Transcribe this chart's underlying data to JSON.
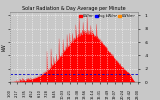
{
  "title": "Solar Radiation & Day Average per Minute",
  "title_fontsize": 3.5,
  "background_color": "#c8c8c8",
  "plot_bg_color": "#c8c8c8",
  "grid_color": "#ffffff",
  "bar_color": "#ff0000",
  "avg_line_color": "#0000cc",
  "avg_line_value": 0.12,
  "ylim": [
    0,
    1.05
  ],
  "ytick_labels": [
    "1",
    ".8",
    ".6",
    ".4",
    ".2",
    "0"
  ],
  "ytick_values": [
    1.0,
    0.8,
    0.6,
    0.4,
    0.2,
    0.0
  ],
  "legend_labels": [
    "kW/m²",
    "Avg kW/m²",
    "kWh/m²"
  ],
  "legend_colors": [
    "#ff0000",
    "#0000ff",
    "#ff8800"
  ],
  "num_points": 480,
  "ylabel_left": "kW",
  "figsize": [
    1.6,
    1.0
  ],
  "dpi": 100
}
